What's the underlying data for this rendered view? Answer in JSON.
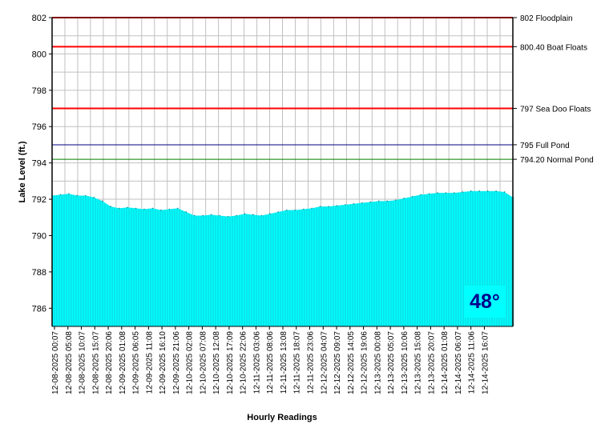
{
  "chart_data": {
    "type": "area",
    "title": "",
    "xlabel": "Hourly Readings",
    "ylabel": "Lake Level (ft.)",
    "ylim": [
      785,
      802
    ],
    "y_ticks": [
      786,
      788,
      790,
      792,
      794,
      796,
      798,
      800,
      802
    ],
    "grid": true,
    "x_tick_labels": [
      "12-08-2025 00:07",
      "12-08-2025 05:08",
      "12-08-2025 10:07",
      "12-08-2025 15:07",
      "12-08-2025 20:06",
      "12-09-2025 01:08",
      "12-09-2025 06:05",
      "12-09-2025 11:08",
      "12-09-2025 16:10",
      "12-09-2025 21:06",
      "12-10-2025 02:08",
      "12-10-2025 07:08",
      "12-10-2025 12:08",
      "12-10-2025 17:09",
      "12-10-2025 22:06",
      "12-11-2025 03:06",
      "12-11-2025 08:06",
      "12-11-2025 13:08",
      "12-11-2025 18:07",
      "12-11-2025 23:06",
      "12-12-2025 04:07",
      "12-12-2025 09:07",
      "12-12-2025 14:05",
      "12-12-2025 19:06",
      "12-13-2025 00:08",
      "12-13-2025 05:07",
      "12-13-2025 10:06",
      "12-13-2025 15:08",
      "12-13-2025 20:07",
      "12-14-2025 01:08",
      "12-14-2025 06:07",
      "12-14-2025 11:06",
      "12-14-2025 16:07"
    ],
    "series": [
      {
        "values": [
          792.2,
          792.25,
          792.3,
          792.2,
          792.2,
          792.1,
          791.9,
          791.6,
          791.5,
          791.55,
          791.5,
          791.45,
          791.5,
          791.4,
          791.45,
          791.5,
          791.3,
          791.1,
          791.1,
          791.15,
          791.1,
          791.05,
          791.1,
          791.2,
          791.15,
          791.1,
          791.2,
          791.3,
          791.4,
          791.4,
          791.45,
          791.5,
          791.6,
          791.6,
          791.65,
          791.7,
          791.75,
          791.8,
          791.85,
          791.9,
          791.9,
          791.95,
          792.05,
          792.15,
          792.25,
          792.3,
          792.35,
          792.35,
          792.35,
          792.4,
          792.45,
          792.45,
          792.45,
          792.45,
          792.4,
          792.1
        ],
        "color": "#00ffff"
      }
    ],
    "reference_lines": [
      {
        "value": 802,
        "label": "802 Floodplain",
        "color": "#ff0000"
      },
      {
        "value": 800.4,
        "label": "800.40 Boat Floats",
        "color": "#ff0000"
      },
      {
        "value": 797,
        "label": "797 Sea Doo Floats",
        "color": "#ff0000"
      },
      {
        "value": 795,
        "label": "795 Full Pond",
        "color": "#000080"
      },
      {
        "value": 794.2,
        "label": "794.20 Normal Pond",
        "color": "#008000"
      }
    ]
  },
  "temperature": "48°"
}
